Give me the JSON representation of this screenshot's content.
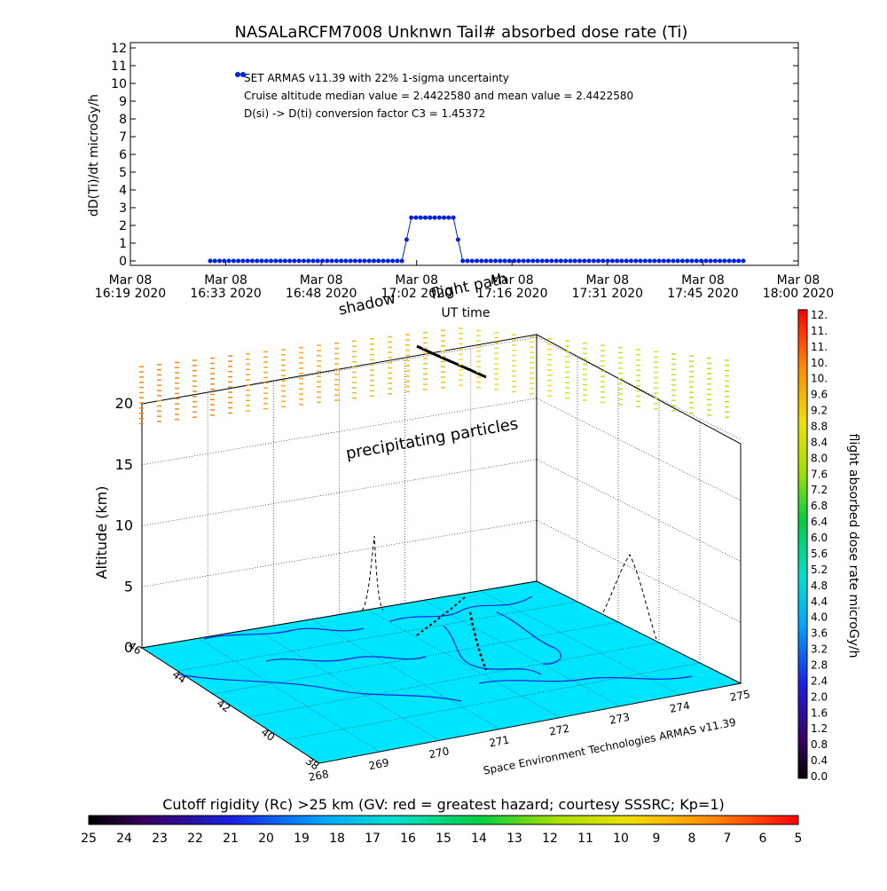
{
  "chart_data": [
    {
      "type": "line",
      "title": "NASALaRCFM7008  Unknwn Tail#  absorbed dose rate (Ti)",
      "ylabel": "dD(Ti)/dt microGy/h",
      "xlabel": "UT time",
      "ylim": [
        0,
        12
      ],
      "yticks": [
        "0",
        "1",
        "2",
        "3",
        "4",
        "5",
        "6",
        "7",
        "8",
        "9",
        "10",
        "11",
        "12"
      ],
      "xticks": [
        {
          "date": "Mar 08",
          "time": "16:19  2020"
        },
        {
          "date": "Mar 08",
          "time": "16:33  2020"
        },
        {
          "date": "Mar 08",
          "time": "16:48  2020"
        },
        {
          "date": "Mar 08",
          "time": "17:02  2020"
        },
        {
          "date": "Mar 08",
          "time": "17:16  2020"
        },
        {
          "date": "Mar 08",
          "time": "17:31  2020"
        },
        {
          "date": "Mar 08",
          "time": "17:45  2020"
        },
        {
          "date": "Mar 08",
          "time": "18:00  2020"
        }
      ],
      "annotations": [
        "SET ARMAS v11.39 with 22% 1-sigma uncertainty",
        "Cruise altitude median value = 2.4422580 and mean value = 2.4422580",
        "D(si) -> D(ti) conversion factor C3 = 1.45372"
      ],
      "series": [
        {
          "color": "#0022dd",
          "x_tick_fraction_start": 0.42,
          "description_values": [
            0,
            0,
            0,
            0,
            0,
            0,
            0,
            0,
            0,
            0,
            0,
            0,
            0,
            0,
            0,
            0,
            0,
            0,
            0,
            0,
            0,
            0,
            0,
            0,
            0,
            0,
            0,
            0,
            0,
            0,
            0,
            0,
            0,
            0,
            0,
            0,
            0,
            0,
            0,
            0,
            0,
            0.0,
            1.2,
            2.44,
            2.44,
            2.44,
            2.44,
            2.44,
            2.44,
            2.44,
            2.44,
            2.44,
            2.44,
            1.2,
            0,
            0,
            0,
            0,
            0,
            0,
            0,
            0,
            0,
            0,
            0,
            0,
            0,
            0,
            0,
            0,
            0,
            0,
            0,
            0,
            0,
            0,
            0,
            0,
            0,
            0,
            0,
            0,
            0,
            0,
            0,
            0,
            0,
            0,
            0,
            0,
            0,
            0,
            0,
            0,
            0,
            0,
            0,
            0,
            0,
            0,
            0,
            0,
            0,
            0,
            0,
            0,
            0,
            0,
            0,
            0,
            0,
            0,
            0,
            0,
            0
          ]
        }
      ],
      "legend_point_value": 10.5
    },
    {
      "type": "heatmap",
      "zlabel": "Altitude (km)",
      "zticks": [
        "0",
        "5",
        "10",
        "15",
        "20"
      ],
      "y_ticks": [
        "38",
        "40",
        "42",
        "44",
        "46"
      ],
      "x_ticks": [
        "268",
        "269",
        "270",
        "271",
        "272",
        "273",
        "274",
        "275"
      ],
      "labels": {
        "precipitating": "precipitating particles",
        "shadow": "shadow",
        "flight": "flight path",
        "credit": "Space Environment Technologies ARMAS v11.39"
      },
      "surface_color": "#00e5ff"
    }
  ],
  "colorbar_right": {
    "label": "flight absorbed dose rate microGy/h",
    "ticks": [
      "12.",
      "11.",
      "11.",
      "10.",
      "10.",
      "9.6",
      "9.2",
      "8.8",
      "8.4",
      "8.0",
      "7.6",
      "7.2",
      "6.8",
      "6.4",
      "6.0",
      "5.6",
      "5.2",
      "4.8",
      "4.4",
      "4.0",
      "3.6",
      "3.2",
      "2.8",
      "2.4",
      "2.0",
      "1.6",
      "1.2",
      "0.8",
      "0.4",
      "0.0"
    ]
  },
  "colorbar_bottom": {
    "label": "Cutoff rigidity (Rc) >25 km (GV: red = greatest hazard; courtesy SSSRC; Kp=1)",
    "ticks": [
      "25",
      "24",
      "23",
      "22",
      "21",
      "20",
      "19",
      "18",
      "17",
      "16",
      "15",
      "14",
      "13",
      "12",
      "11",
      "10",
      "9",
      "8",
      "7",
      "6",
      "5"
    ]
  }
}
